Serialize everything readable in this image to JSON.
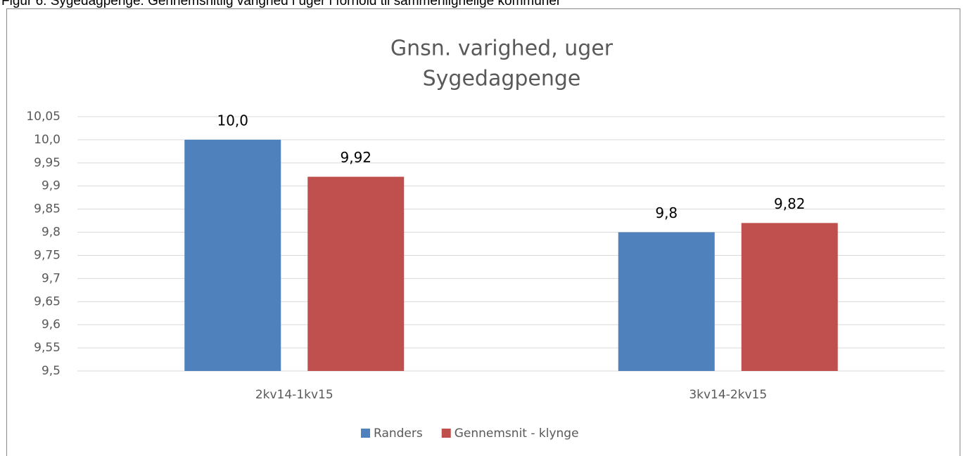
{
  "caption": "Figur 6: Sygedagpenge: Gennemsnitlig varighed i uger i forhold til sammenlignelige kommuner",
  "chart_data": {
    "type": "bar",
    "title": "Gnsn. varighed, uger",
    "subtitle": "Sygedagpenge",
    "categories": [
      "2kv14-1kv15",
      "3kv14-2kv15"
    ],
    "series": [
      {
        "name": "Randers",
        "color": "#4f81bd",
        "values": [
          10.0,
          9.8
        ],
        "value_labels": [
          "10,0",
          "9,8"
        ]
      },
      {
        "name": "Gennemsnit - klynge",
        "color": "#c0504d",
        "values": [
          9.92,
          9.82
        ],
        "value_labels": [
          "9,92",
          "9,82"
        ]
      }
    ],
    "ylim": [
      9.5,
      10.05
    ],
    "yticks": [
      {
        "value": 9.5,
        "label": "9,5"
      },
      {
        "value": 9.55,
        "label": "9,55"
      },
      {
        "value": 9.6,
        "label": "9,6"
      },
      {
        "value": 9.65,
        "label": "9,65"
      },
      {
        "value": 9.7,
        "label": "9,7"
      },
      {
        "value": 9.75,
        "label": "9,75"
      },
      {
        "value": 9.8,
        "label": "9,8"
      },
      {
        "value": 9.85,
        "label": "9,85"
      },
      {
        "value": 9.9,
        "label": "9,9"
      },
      {
        "value": 9.95,
        "label": "9,95"
      },
      {
        "value": 10.0,
        "label": "10,0"
      },
      {
        "value": 10.05,
        "label": "10,05"
      }
    ],
    "grid": true,
    "legend": "bottom"
  }
}
